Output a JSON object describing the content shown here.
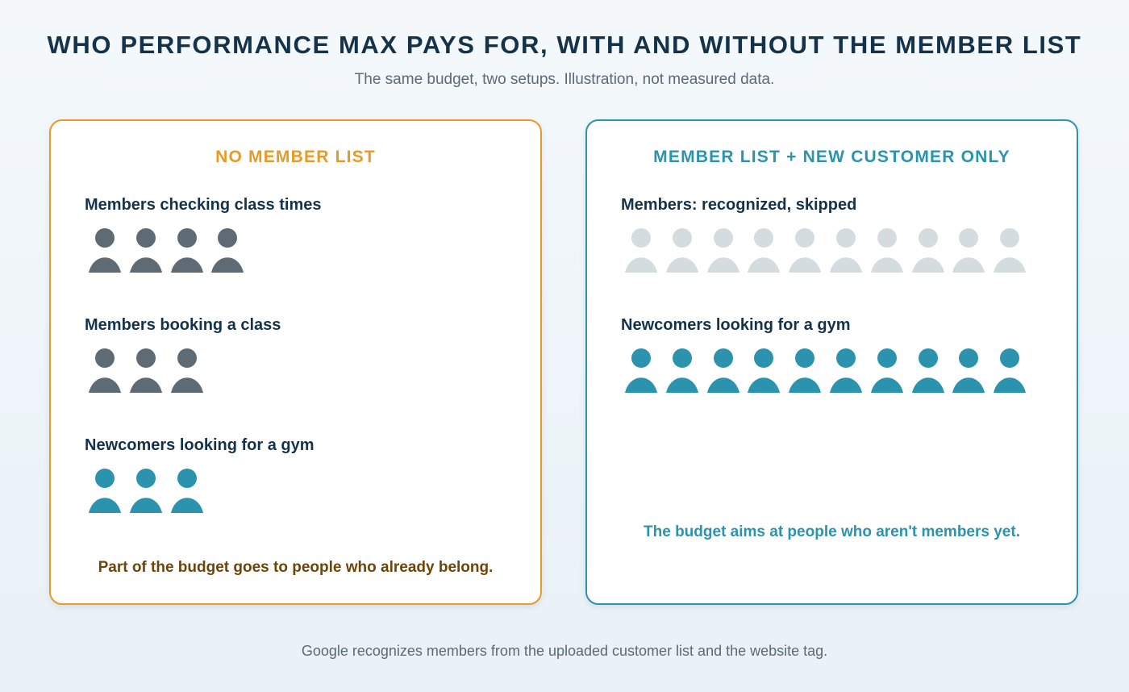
{
  "title": "WHO PERFORMANCE MAX PAYS FOR, WITH AND WITHOUT THE MEMBER LIST",
  "subtitle": "The same budget, two setups. Illustration, not measured data.",
  "colors": {
    "member": "#5f6b74",
    "newcomer": "#2b93ad",
    "skipped": "#d5dcdf",
    "left_accent": "#e79a26",
    "right_accent": "#2b93ad"
  },
  "panels": [
    {
      "title": "NO MEMBER LIST",
      "groups": [
        {
          "label": "Members checking class times",
          "count": 4,
          "color": "#5f6b74"
        },
        {
          "label": "Members booking a class",
          "count": 3,
          "color": "#5f6b74"
        },
        {
          "label": "Newcomers looking for a gym",
          "count": 3,
          "color": "#2b93ad"
        }
      ],
      "footnote": "Part of the budget goes to people who already belong."
    },
    {
      "title": "MEMBER LIST + NEW CUSTOMER ONLY",
      "groups": [
        {
          "label": "Members: recognized, skipped",
          "count": 10,
          "color": "#d5dcdf"
        },
        {
          "label": "Newcomers looking for a gym",
          "count": 10,
          "color": "#2b93ad"
        }
      ],
      "footnote": "The budget aims at people who aren't members yet."
    }
  ],
  "caption": "Google recognizes members from the uploaded customer list and the website tag."
}
